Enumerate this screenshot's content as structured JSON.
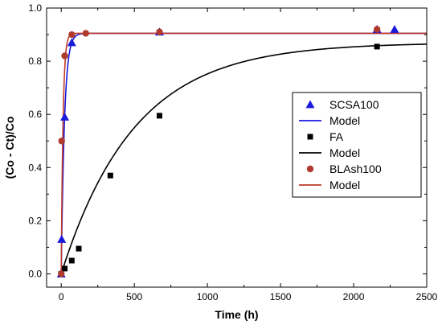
{
  "chart_data": {
    "type": "scatter",
    "title": "",
    "xlabel": "Time (h)",
    "ylabel": "(Co - Ct)/Co",
    "xlim": [
      -100,
      2500
    ],
    "ylim": [
      -0.05,
      1.0
    ],
    "x_ticks": [
      0,
      500,
      1000,
      1500,
      2000,
      2500
    ],
    "y_ticks": [
      0.0,
      0.2,
      0.4,
      0.6,
      0.8,
      1.0
    ],
    "grid": false,
    "legend_position": "right",
    "series": [
      {
        "name": "SCSA100",
        "kind": "points",
        "marker": "triangle",
        "color": "#1a1adc",
        "x": [
          0,
          3,
          24,
          72,
          672,
          2160,
          2280
        ],
        "y": [
          0.0,
          0.13,
          0.59,
          0.87,
          0.91,
          0.92,
          0.92
        ]
      },
      {
        "name": "Model",
        "kind": "line",
        "color": "#1a1adc",
        "model": {
          "plateau": 0.905,
          "rate": 0.045
        }
      },
      {
        "name": "FA",
        "kind": "points",
        "marker": "square",
        "color": "#000000",
        "x": [
          0,
          24,
          72,
          120,
          336,
          672,
          2160
        ],
        "y": [
          0.0,
          0.02,
          0.05,
          0.095,
          0.37,
          0.595,
          0.855
        ]
      },
      {
        "name": "Model",
        "kind": "line",
        "color": "#000000",
        "model": {
          "plateau": 0.87,
          "rate": 0.002
        }
      },
      {
        "name": "BLAsh100",
        "kind": "points",
        "marker": "circle",
        "color": "#b03a2e",
        "x": [
          0,
          3,
          24,
          72,
          168,
          672,
          2160
        ],
        "y": [
          0.0,
          0.5,
          0.82,
          0.9,
          0.905,
          0.91,
          0.92
        ]
      },
      {
        "name": "Model",
        "kind": "line",
        "color": "#c0392b",
        "model": {
          "plateau": 0.905,
          "rate": 0.08
        }
      }
    ]
  }
}
